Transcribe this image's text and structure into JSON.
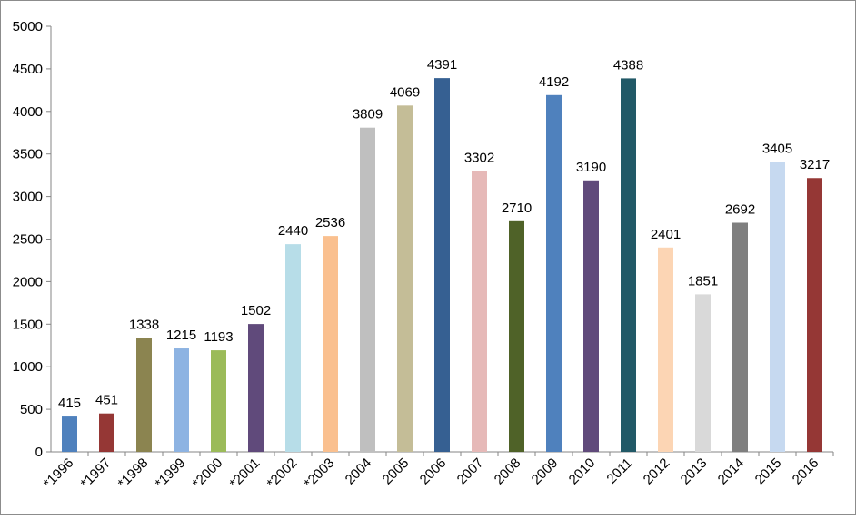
{
  "chart_data": {
    "type": "bar",
    "title": "",
    "xlabel": "",
    "ylabel": "",
    "ylim": [
      0,
      5000
    ],
    "yticks": [
      0,
      500,
      1000,
      1500,
      2000,
      2500,
      3000,
      3500,
      4000,
      4500,
      5000
    ],
    "grid": false,
    "legend": "none",
    "categories": [
      "*1996",
      "*1997",
      "*1998",
      "*1999",
      "*2000",
      "*2001",
      "*2002",
      "*2003",
      "2004",
      "2005",
      "2006",
      "2007",
      "2008",
      "2009",
      "2010",
      "2011",
      "2012",
      "2013",
      "2014",
      "2015",
      "2016"
    ],
    "values": [
      415,
      451,
      1338,
      1215,
      1193,
      1502,
      2440,
      2536,
      3809,
      4069,
      4391,
      3302,
      2710,
      4192,
      3190,
      4388,
      2401,
      1851,
      2692,
      3405,
      3217
    ],
    "colors": [
      "#4f81bd",
      "#953735",
      "#8b8450",
      "#8db3e2",
      "#9bbb59",
      "#604a7b",
      "#b7dde8",
      "#fac08f",
      "#bfbfbf",
      "#c4bd97",
      "#366092",
      "#e6b9b8",
      "#4f6228",
      "#4f81bd",
      "#604a7b",
      "#215967",
      "#fcd5b4",
      "#d9d9d9",
      "#7f7f7f",
      "#c6d9f0",
      "#953735"
    ]
  }
}
